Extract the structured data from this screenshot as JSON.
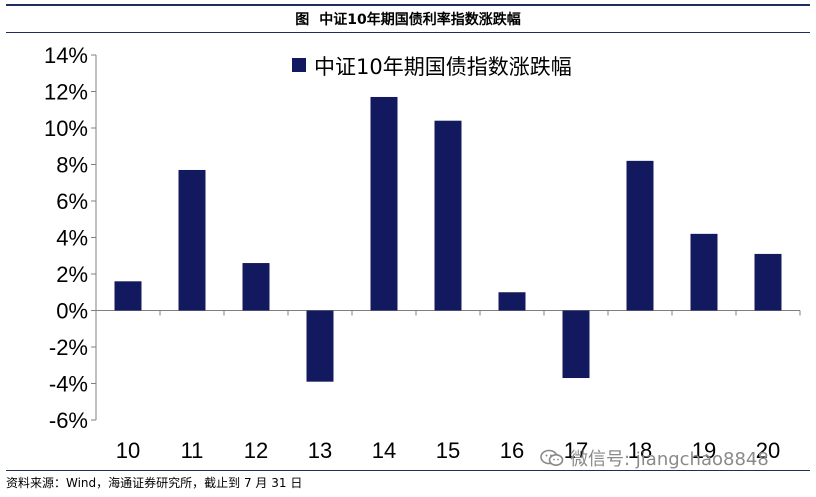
{
  "figure": {
    "prefix": "图",
    "title": "中证10年期国债利率指数涨跌幅"
  },
  "footer": {
    "source": "资料来源：Wind，海通证券研究所，截止到 7 月 31 日"
  },
  "watermark": {
    "text": "微信号: jiangchao8848",
    "icon": "wechat-icon"
  },
  "colors": {
    "bar": "#13195f",
    "axis": "#808080",
    "title_rule": "#1f2d5c"
  },
  "chart_data": {
    "type": "bar",
    "title": "",
    "xlabel": "",
    "ylabel": "",
    "categories": [
      "10",
      "11",
      "12",
      "13",
      "14",
      "15",
      "16",
      "17",
      "18",
      "19",
      "20"
    ],
    "series": [
      {
        "name": "中证10年期国债指数涨跌幅",
        "values": [
          1.6,
          7.7,
          2.6,
          -3.9,
          11.7,
          10.4,
          1.0,
          -3.7,
          8.2,
          4.2,
          3.1
        ]
      }
    ],
    "ylim": [
      -6,
      14
    ],
    "yticks": [
      "14%",
      "12%",
      "10%",
      "8%",
      "6%",
      "4%",
      "2%",
      "0%",
      "-2%",
      "-4%",
      "-6%"
    ],
    "ytick_values": [
      14,
      12,
      10,
      8,
      6,
      4,
      2,
      0,
      -2,
      -4,
      -6
    ],
    "grid": false,
    "legend_position": "top-center"
  }
}
